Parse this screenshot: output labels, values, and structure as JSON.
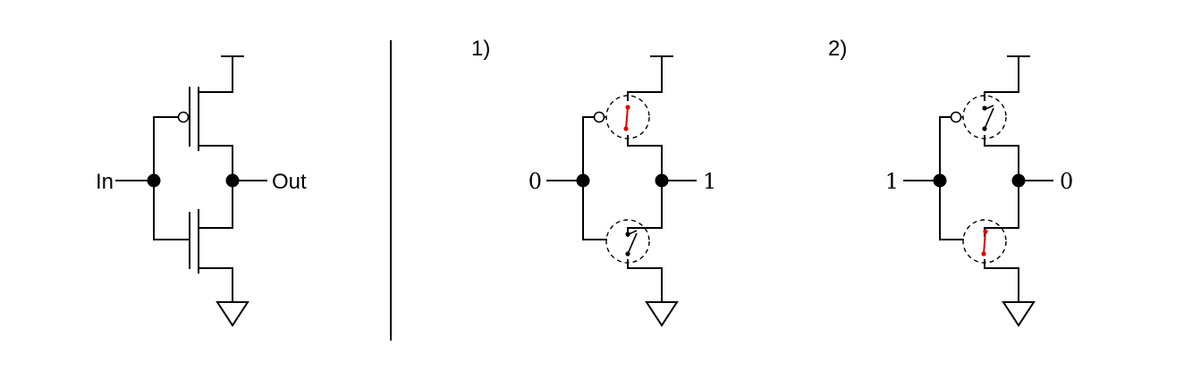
{
  "schematic": {
    "input_label": "In",
    "output_label": "Out"
  },
  "case1": {
    "title": "1)",
    "input_value": "0",
    "output_value": "1",
    "pmos_switch": "closed",
    "nmos_switch": "open"
  },
  "case2": {
    "title": "2)",
    "input_value": "1",
    "output_value": "0",
    "pmos_switch": "open",
    "nmos_switch": "closed"
  },
  "colors": {
    "wire": "#000000",
    "closed_switch": "#e00000"
  }
}
